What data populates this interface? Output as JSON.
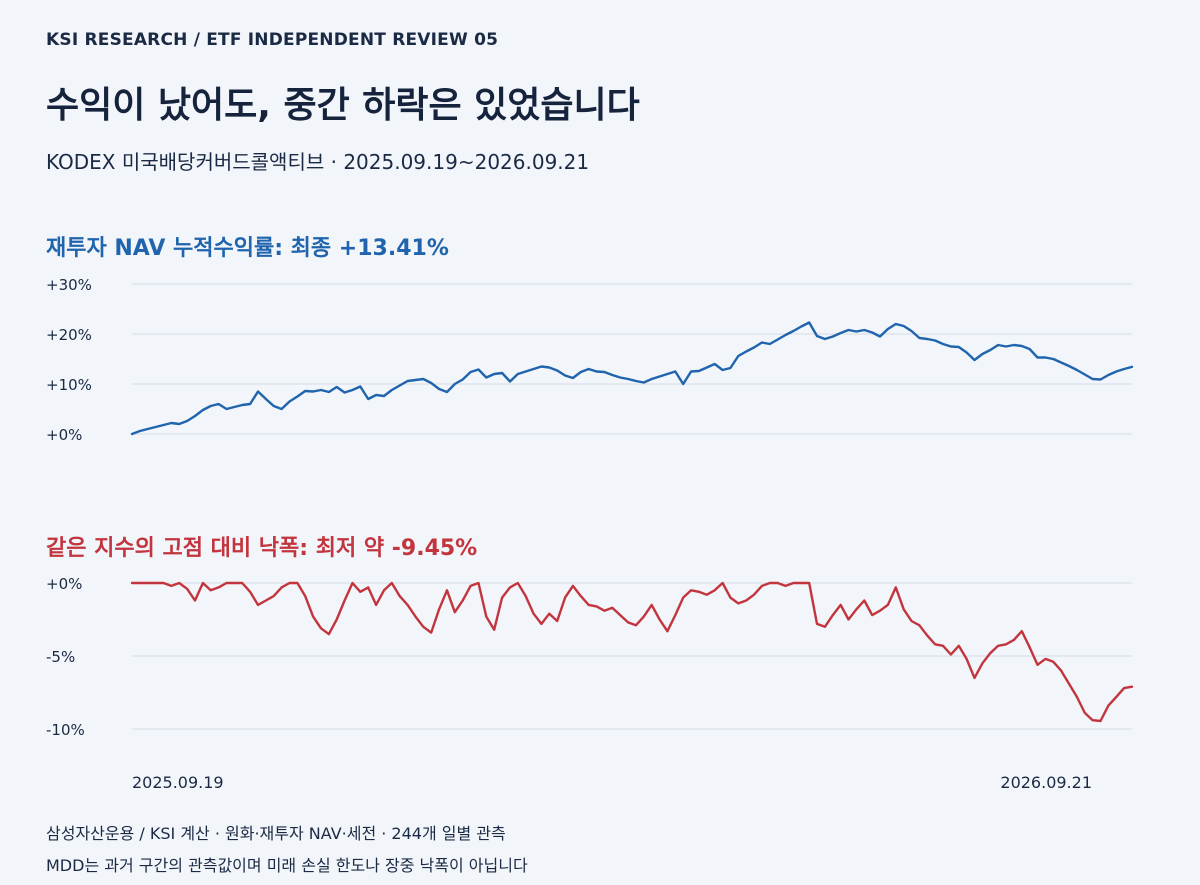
{
  "kicker": "KSI RESEARCH / ETF INDEPENDENT REVIEW 05",
  "title": "수익이 났어도, 중간 하락은 있었습니다",
  "subtitle": "KODEX 미국배당커버드콜액티브 · 2025.09.19~2026.09.21",
  "notes": {
    "line1": "삼성자산운용 / KSI 계산 · 원화·재투자 NAV·세전 · 244개 일별 관측",
    "line2": "MDD는 과거 구간의 관측값이며 미래 손실 한도나 장중 낙폭이 아닙니다"
  },
  "colors": {
    "nav": "#1f64ad",
    "mdd": "#c3353e",
    "grid": "#d6dce6"
  },
  "chart_data": [
    {
      "type": "line",
      "title": "재투자 NAV 누적수익률: 최종 +13.41%",
      "ylim": [
        0,
        30
      ],
      "yticks": [
        0,
        10,
        20,
        30
      ],
      "ytick_labels": [
        "+0%",
        "+10%",
        "+20%",
        "+30%"
      ],
      "x_start_label": "2025.09.19",
      "x_end_label": "2026.09.21",
      "grid": true,
      "series": [
        {
          "values": [
            0,
            0.6,
            1,
            1.4,
            1.8,
            2.2,
            2.0,
            2.6,
            3.6,
            4.8,
            5.6,
            6.0,
            5.0,
            5.4,
            5.8,
            6.0,
            8.5,
            7.0,
            5.6,
            5.0,
            6.5,
            7.5,
            8.6,
            8.5,
            8.8,
            8.4,
            9.4,
            8.3,
            8.8,
            9.5,
            7.0,
            7.8,
            7.6,
            8.8,
            9.7,
            10.6,
            10.8,
            11.0,
            10.2,
            9.0,
            8.4,
            10.0,
            10.9,
            12.4,
            12.9,
            11.3,
            12.0,
            12.2,
            10.5,
            12.0,
            12.5,
            13.0,
            13.5,
            13.3,
            12.7,
            11.7,
            11.2,
            12.4,
            13.0,
            12.5,
            12.4,
            11.8,
            11.3,
            11.0,
            10.6,
            10.3,
            11.0,
            11.5,
            12.0,
            12.5,
            10.0,
            12.5,
            12.6,
            13.3,
            14.0,
            12.8,
            13.2,
            15.6,
            16.5,
            17.3,
            18.3,
            18.0,
            18.9,
            19.8,
            20.6,
            21.5,
            22.3,
            19.6,
            19.0,
            19.5,
            20.2,
            20.8,
            20.5,
            20.8,
            20.3,
            19.5,
            21.0,
            22.0,
            21.6,
            20.6,
            19.2,
            19.0,
            18.7,
            18.0,
            17.5,
            17.4,
            16.3,
            14.8,
            16.0,
            16.8,
            17.8,
            17.5,
            17.8,
            17.6,
            17.0,
            15.3,
            15.3,
            15.0,
            14.3,
            13.6,
            12.8,
            11.9,
            11.0,
            10.9,
            11.8,
            12.5,
            13.0,
            13.41
          ]
        }
      ]
    },
    {
      "type": "line",
      "title": "같은 지수의 고점 대비 낙폭: 최저 약 -9.45%",
      "ylim": [
        -10,
        0
      ],
      "yticks": [
        0,
        -5,
        -10
      ],
      "ytick_labels": [
        "+0%",
        "-5%",
        "-10%"
      ],
      "x_start_label": "2025.09.19",
      "x_end_label": "2026.09.21",
      "grid": true,
      "series": [
        {
          "values": [
            0,
            0,
            0,
            0,
            0,
            -0.2,
            0,
            -0.4,
            -1.2,
            0,
            -0.5,
            -0.3,
            0,
            0,
            0,
            -0.6,
            -1.5,
            -1.2,
            -0.9,
            -0.3,
            0,
            0,
            -0.9,
            -2.3,
            -3.1,
            -3.5,
            -2.5,
            -1.2,
            0,
            -0.6,
            -0.3,
            -1.5,
            -0.5,
            0,
            -0.9,
            -1.5,
            -2.3,
            -3.0,
            -3.4,
            -1.8,
            -0.5,
            -2.0,
            -1.2,
            -0.2,
            0,
            -2.3,
            -3.2,
            -1.0,
            -0.3,
            0,
            -0.9,
            -2.1,
            -2.8,
            -2.1,
            -2.6,
            -1.0,
            -0.2,
            -0.9,
            -1.5,
            -1.6,
            -1.9,
            -1.7,
            -2.2,
            -2.7,
            -2.9,
            -2.3,
            -1.5,
            -2.5,
            -3.3,
            -2.2,
            -1.0,
            -0.5,
            -0.6,
            -0.8,
            -0.5,
            0,
            -1.0,
            -1.4,
            -1.2,
            -0.8,
            -0.2,
            0,
            0,
            -0.2,
            0,
            0,
            0,
            -2.8,
            -3.0,
            -2.2,
            -1.5,
            -2.5,
            -1.8,
            -1.2,
            -2.2,
            -1.9,
            -1.5,
            -0.3,
            -1.8,
            -2.6,
            -2.9,
            -3.6,
            -4.2,
            -4.3,
            -4.9,
            -4.3,
            -5.2,
            -6.5,
            -5.5,
            -4.8,
            -4.3,
            -4.2,
            -3.9,
            -3.3,
            -4.4,
            -5.6,
            -5.2,
            -5.4,
            -6.0,
            -6.9,
            -7.8,
            -8.9,
            -9.4,
            -9.45,
            -8.4,
            -7.8,
            -7.2,
            -7.1
          ]
        }
      ]
    }
  ]
}
